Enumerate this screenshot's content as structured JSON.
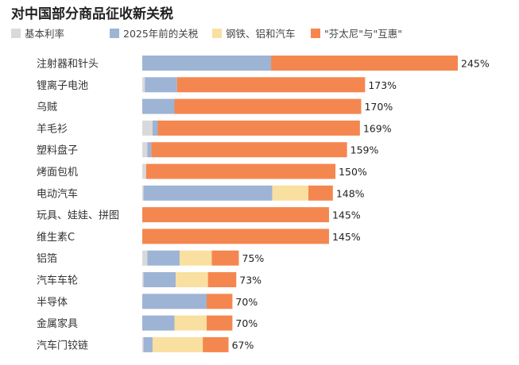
{
  "chart_data": {
    "type": "bar",
    "orientation": "horizontal",
    "stacked": true,
    "title": "对中国部分商品征收新关税",
    "xlabel": "",
    "ylabel": "",
    "legend_position": "top",
    "grid": false,
    "categories": [
      "注射器和针头",
      "锂离子电池",
      "乌贼",
      "羊毛衫",
      "塑料盘子",
      "烤面包机",
      "电动汽车",
      "玩具、娃娃、拼图",
      "维生素C",
      "铝箔",
      "汽车车轮",
      "半导体",
      "金属家具",
      "汽车门铰链"
    ],
    "series": [
      {
        "name": "基本利率",
        "color": "#d9d9d9",
        "values": [
          0,
          2,
          0,
          8,
          4,
          3,
          1,
          0,
          0,
          4,
          1,
          0,
          0,
          1
        ]
      },
      {
        "name": "2025年前的关税",
        "color": "#9db4d4",
        "values": [
          100,
          25,
          25,
          4,
          3,
          0,
          100,
          0,
          0,
          25,
          25,
          50,
          25,
          7
        ]
      },
      {
        "name": "钢铁、铝和汽车",
        "color": "#f9e0a0",
        "values": [
          0,
          0,
          0,
          0,
          0,
          0,
          28,
          0,
          0,
          25,
          25,
          0,
          25,
          39
        ]
      },
      {
        "name": "\"芬太尼\"与\"互惠\"",
        "color": "#f4874f",
        "values": [
          145,
          146,
          145,
          157,
          152,
          147,
          19,
          145,
          145,
          21,
          22,
          20,
          20,
          20
        ]
      }
    ],
    "totals": [
      "245%",
      "173%",
      "170%",
      "169%",
      "159%",
      "150%",
      "148%",
      "145%",
      "145%",
      "75%",
      "73%",
      "70%",
      "70%",
      "67%"
    ],
    "xlim": [
      0,
      245
    ]
  }
}
